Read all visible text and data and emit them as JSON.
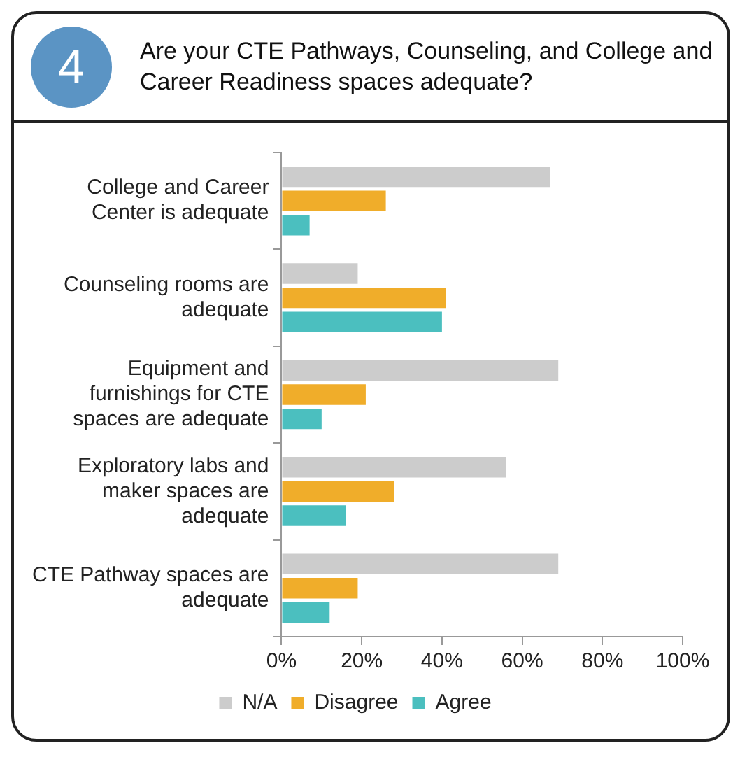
{
  "chart_data": {
    "type": "bar",
    "orientation": "horizontal",
    "title": "Are your CTE Pathways, Counseling, and College and Career Readiness spaces adequate?",
    "annotations": [
      "4"
    ],
    "categories": [
      "College and Career Center is adequate",
      "Counseling rooms are adequate",
      "Equipment and furnishings for CTE spaces are adequate",
      "Exploratory labs and maker spaces are adequate",
      "CTE Pathway spaces are adequate"
    ],
    "series": [
      {
        "name": "N/A",
        "color": "#cccccc",
        "values": [
          67,
          19,
          69,
          56,
          69
        ]
      },
      {
        "name": "Disagree",
        "color": "#f0ad2a",
        "values": [
          26,
          41,
          21,
          28,
          19
        ]
      },
      {
        "name": "Agree",
        "color": "#4bbfbf",
        "values": [
          7,
          40,
          10,
          16,
          12
        ]
      }
    ],
    "xlim": [
      0,
      100
    ],
    "xticks": [
      {
        "value": 0,
        "label": "0%"
      },
      {
        "value": 20,
        "label": "20%"
      },
      {
        "value": 40,
        "label": "40%"
      },
      {
        "value": 60,
        "label": "60%"
      },
      {
        "value": 80,
        "label": "80%"
      },
      {
        "value": 100,
        "label": "100%"
      }
    ],
    "grid": false,
    "legend": "bottom"
  }
}
